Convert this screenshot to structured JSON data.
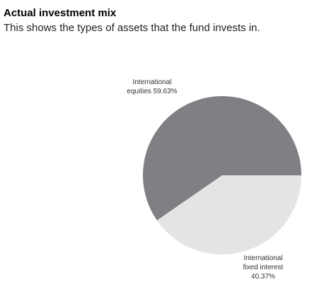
{
  "header": {
    "title": "Actual investment mix",
    "description": "This shows the types of assets that the fund invests in."
  },
  "chart_data": {
    "type": "pie",
    "title": "",
    "slices": [
      {
        "name": "International equities",
        "value": 59.63,
        "label_lines": [
          "International",
          "equities 59.63%"
        ],
        "color": "#807f84"
      },
      {
        "name": "International fixed interest",
        "value": 40.37,
        "label_lines": [
          "International",
          "fixed interest",
          "40.37%"
        ],
        "color": "#e4e4e4"
      }
    ]
  }
}
